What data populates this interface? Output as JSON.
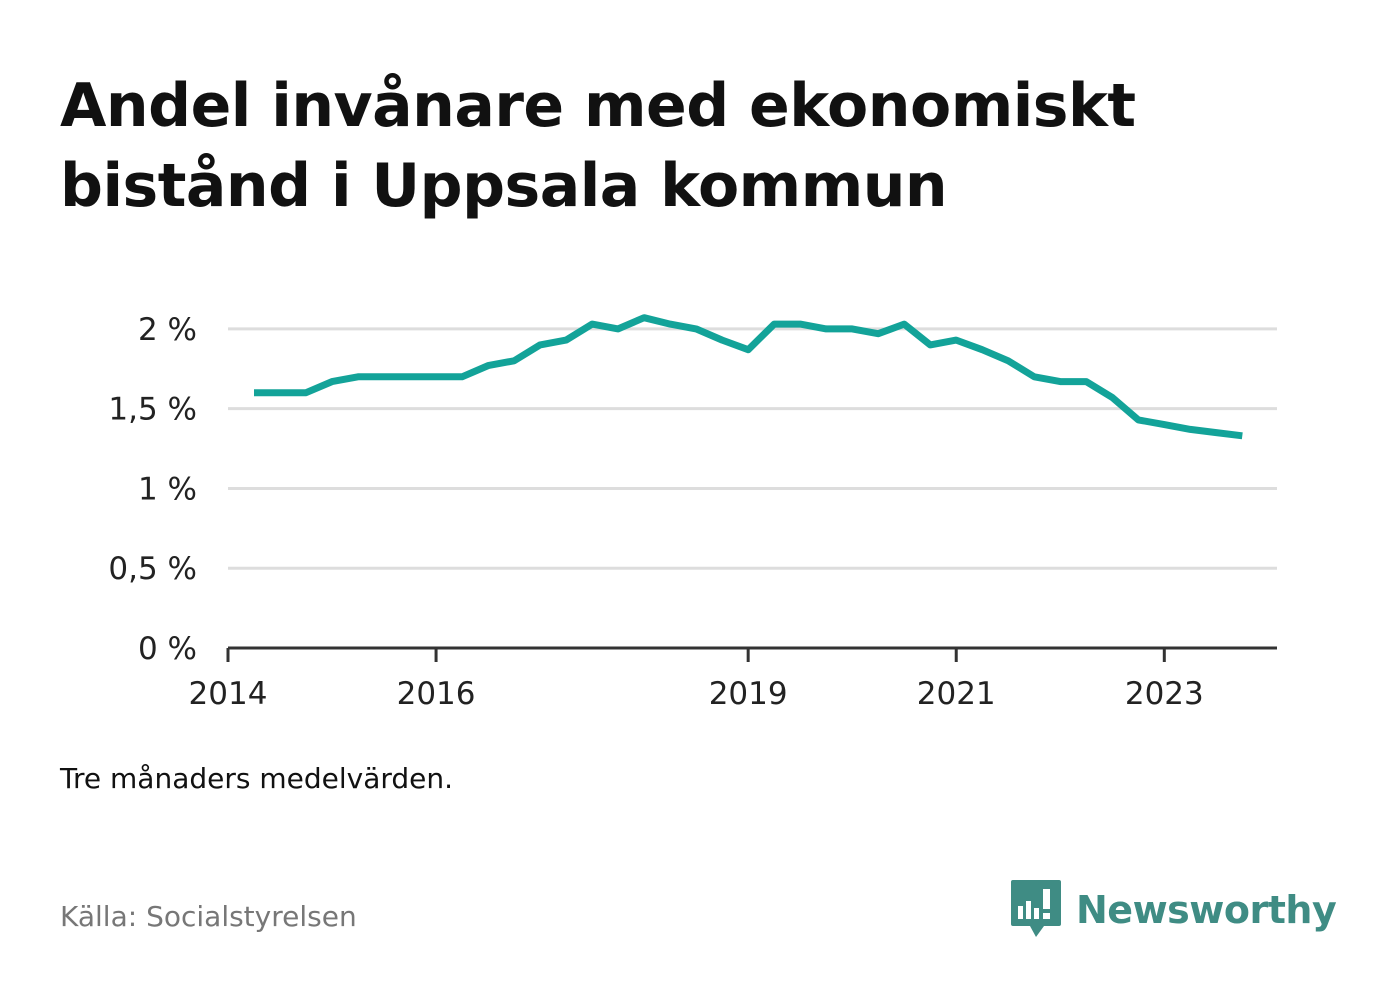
{
  "title": "Andel invånare med ekonomiskt bistånd i Uppsala kommun",
  "note": "Tre månaders medelvärden.",
  "source": "Källa: Socialstyrelsen",
  "brand": {
    "name": "Newsworthy",
    "icon": "newsworthy-logo-icon",
    "color": "#3f8c84"
  },
  "colors": {
    "line": "#13a399",
    "grid": "#dddddd",
    "axis": "#333333"
  },
  "chart_data": {
    "type": "line",
    "title": "Andel invånare med ekonomiskt bistånd i Uppsala kommun",
    "xlabel": "",
    "ylabel": "",
    "y_unit": "%",
    "ylim": [
      0,
      2.2
    ],
    "xlim": [
      "2014-01",
      "2024-02"
    ],
    "y_ticks": [
      {
        "value": 0,
        "label": "0 %"
      },
      {
        "value": 0.5,
        "label": "0,5 %"
      },
      {
        "value": 1,
        "label": "1 %"
      },
      {
        "value": 1.5,
        "label": "1,5 %"
      },
      {
        "value": 2,
        "label": "2 %"
      }
    ],
    "x_ticks": [
      {
        "value": "2014-01",
        "label": "2014"
      },
      {
        "value": "2016-01",
        "label": "2016"
      },
      {
        "value": "2019-01",
        "label": "2019"
      },
      {
        "value": "2021-01",
        "label": "2021"
      },
      {
        "value": "2023-01",
        "label": "2023"
      }
    ],
    "grid": true,
    "legend": "none",
    "series": [
      {
        "points": [
          {
            "x": "2014-04",
            "y": 1.6
          },
          {
            "x": "2014-07",
            "y": 1.6
          },
          {
            "x": "2014-10",
            "y": 1.6
          },
          {
            "x": "2015-01",
            "y": 1.67
          },
          {
            "x": "2015-04",
            "y": 1.7
          },
          {
            "x": "2015-07",
            "y": 1.7
          },
          {
            "x": "2015-10",
            "y": 1.7
          },
          {
            "x": "2016-01",
            "y": 1.7
          },
          {
            "x": "2016-04",
            "y": 1.7
          },
          {
            "x": "2016-07",
            "y": 1.77
          },
          {
            "x": "2016-10",
            "y": 1.8
          },
          {
            "x": "2017-01",
            "y": 1.9
          },
          {
            "x": "2017-04",
            "y": 1.93
          },
          {
            "x": "2017-07",
            "y": 2.03
          },
          {
            "x": "2017-10",
            "y": 2.0
          },
          {
            "x": "2018-01",
            "y": 2.07
          },
          {
            "x": "2018-04",
            "y": 2.03
          },
          {
            "x": "2018-07",
            "y": 2.0
          },
          {
            "x": "2018-10",
            "y": 1.93
          },
          {
            "x": "2019-01",
            "y": 1.87
          },
          {
            "x": "2019-04",
            "y": 2.03
          },
          {
            "x": "2019-07",
            "y": 2.03
          },
          {
            "x": "2019-10",
            "y": 2.0
          },
          {
            "x": "2020-01",
            "y": 2.0
          },
          {
            "x": "2020-04",
            "y": 1.97
          },
          {
            "x": "2020-07",
            "y": 2.03
          },
          {
            "x": "2020-10",
            "y": 1.9
          },
          {
            "x": "2021-01",
            "y": 1.93
          },
          {
            "x": "2021-04",
            "y": 1.87
          },
          {
            "x": "2021-07",
            "y": 1.8
          },
          {
            "x": "2021-10",
            "y": 1.7
          },
          {
            "x": "2022-01",
            "y": 1.67
          },
          {
            "x": "2022-04",
            "y": 1.67
          },
          {
            "x": "2022-07",
            "y": 1.57
          },
          {
            "x": "2022-10",
            "y": 1.43
          },
          {
            "x": "2023-01",
            "y": 1.4
          },
          {
            "x": "2023-04",
            "y": 1.37
          },
          {
            "x": "2023-07",
            "y": 1.35
          },
          {
            "x": "2023-10",
            "y": 1.33
          }
        ]
      }
    ]
  }
}
